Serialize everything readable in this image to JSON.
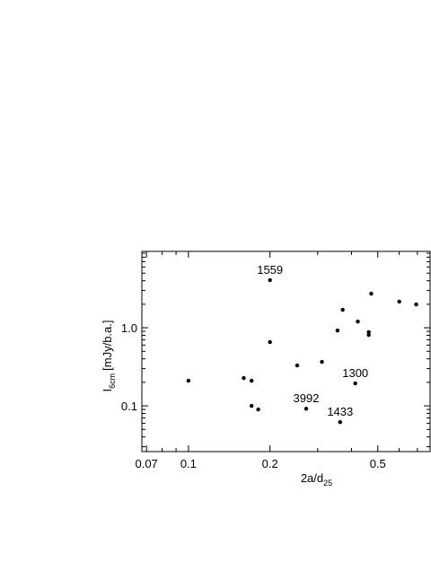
{
  "chart_data": {
    "type": "scatter",
    "x_scale": "log",
    "y_scale": "log",
    "color": "#000000",
    "xlabel": [
      "2a/d",
      "25"
    ],
    "ylabel": [
      "I",
      "6cm",
      "[mJy/b.a.]"
    ],
    "xlim": [
      0.0673,
      0.78
    ],
    "ylim": [
      0.026,
      9.5
    ],
    "xticks": [
      0.07,
      0.1,
      0.2,
      0.5
    ],
    "xminorticks": [
      0.08,
      0.09,
      0.3,
      0.4,
      0.6,
      0.7
    ],
    "yticks": [
      0.1,
      {
        "value": 1,
        "label": "1.0"
      }
    ],
    "yminorticks": [
      0.03,
      0.04,
      0.05,
      0.06,
      0.07,
      0.08,
      0.09,
      0.2,
      0.3,
      0.4,
      0.5,
      0.6,
      0.7,
      0.8,
      0.9,
      2,
      3,
      4,
      5,
      6,
      7,
      8,
      9
    ],
    "x": [
      0.1,
      0.16,
      0.171,
      0.171,
      0.181,
      0.2,
      0.2,
      0.252,
      0.272,
      0.311,
      0.355,
      0.371,
      0.363,
      0.413,
      0.422,
      0.463,
      0.463,
      0.473,
      0.6,
      0.693
    ],
    "y": [
      0.21,
      0.227,
      0.21,
      0.1,
      0.09,
      4.07,
      0.655,
      0.329,
      0.092,
      0.366,
      0.92,
      1.7,
      0.062,
      0.194,
      1.2,
      0.88,
      0.81,
      2.73,
      2.16,
      1.99
    ],
    "point_labels": [
      null,
      null,
      null,
      null,
      null,
      "1559",
      null,
      null,
      "3992",
      null,
      null,
      null,
      "1433",
      "1300",
      null,
      null,
      null,
      null,
      null,
      null
    ]
  }
}
